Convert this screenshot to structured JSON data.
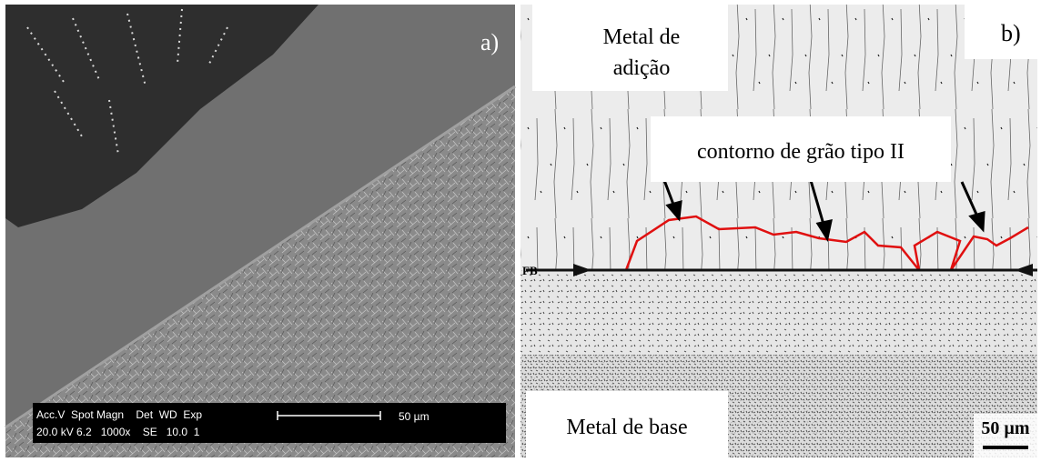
{
  "panels": {
    "a": {
      "label": "a)",
      "info_bar": {
        "header": "Acc.V  Spot Magn    Det  WD  Exp",
        "values": "20.0 kV 6.2   1000x    SE   10.0  1",
        "scale": "50 µm"
      }
    },
    "b": {
      "label": "b)",
      "annotations": {
        "filler": [
          "Metal de",
          "adição"
        ],
        "boundary": "contorno de grão tipo II",
        "fusion_line": "FB",
        "base": "Metal de base",
        "scale": "50 µm"
      }
    }
  }
}
